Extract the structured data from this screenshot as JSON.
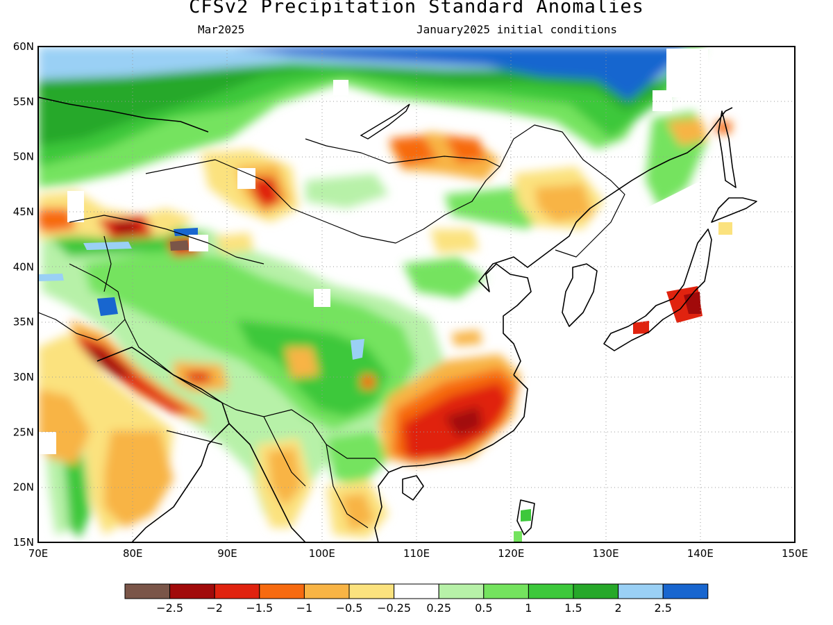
{
  "title": "CFSv2 Precipitation Standard Anomalies",
  "subtitle_left": "Mar2025",
  "subtitle_right": "January2025 initial conditions",
  "map": {
    "lon_range": [
      70,
      150
    ],
    "lat_range": [
      15,
      60
    ],
    "lon_ticks": [
      "70E",
      "80E",
      "90E",
      "100E",
      "110E",
      "120E",
      "130E",
      "140E",
      "150E"
    ],
    "lat_ticks": [
      "15N",
      "20N",
      "25N",
      "30N",
      "35N",
      "40N",
      "45N",
      "50N",
      "55N",
      "60N"
    ],
    "grid": "dotted"
  },
  "colorbar": {
    "colors": [
      "#7a5548",
      "#a10a0a",
      "#e0230f",
      "#f76a10",
      "#f8b445",
      "#fbe27e",
      "#ffffff",
      "#b7f1a8",
      "#74e35e",
      "#3dc83b",
      "#27a82a",
      "#9ad0f5",
      "#1866cf"
    ],
    "labels": [
      "−2.5",
      "−2",
      "−1.5",
      "−1",
      "−0.5",
      "−0.25",
      "0.25",
      "0.5",
      "1",
      "1.5",
      "2",
      "2.5"
    ]
  },
  "anomaly_fields": [
    {
      "lon": 100,
      "lat": 57.5,
      "level": "1.5"
    },
    {
      "lon": 112,
      "lat": 59,
      "level": "2.5"
    },
    {
      "lon": 75,
      "lat": 52,
      "level": "2"
    },
    {
      "lon": 105,
      "lat": 35,
      "level": "1"
    },
    {
      "lon": 88,
      "lat": 42,
      "level": "1"
    },
    {
      "lon": 115,
      "lat": 26,
      "level": "-2.5"
    },
    {
      "lon": 80,
      "lat": 30,
      "level": "-2"
    },
    {
      "lon": 93,
      "lat": 46.5,
      "level": "-2"
    },
    {
      "lon": 115,
      "lat": 50.5,
      "level": "-1.5"
    },
    {
      "lon": 139,
      "lat": 36.5,
      "level": "-2"
    }
  ]
}
